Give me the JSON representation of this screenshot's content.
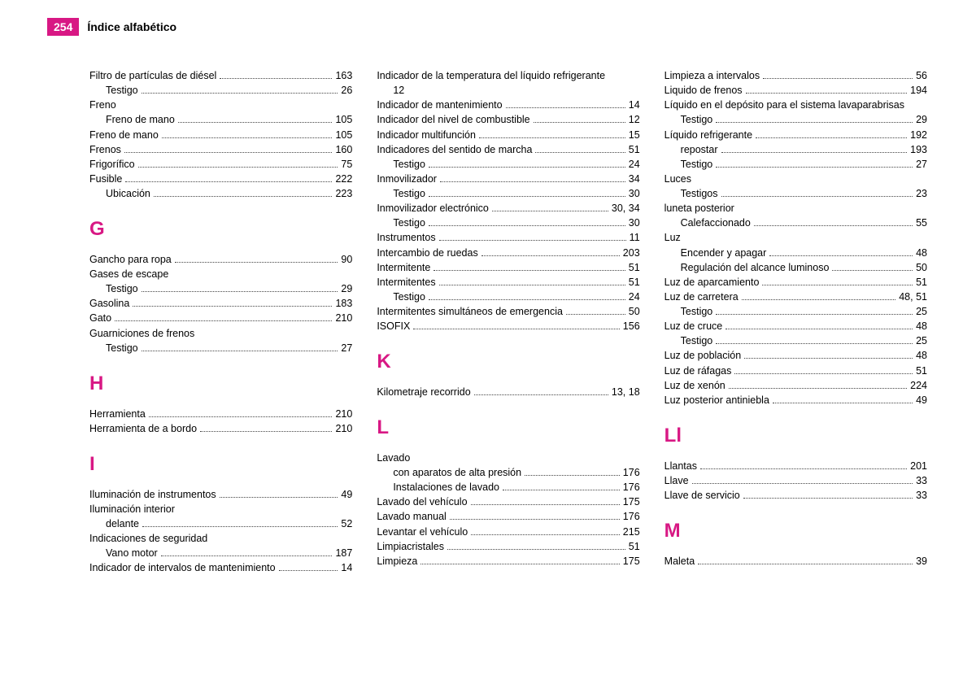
{
  "header": {
    "page_number": "254",
    "title": "Índice alfabético"
  },
  "colors": {
    "accent": "#d81884",
    "text": "#000000",
    "background": "#ffffff"
  },
  "columns": [
    {
      "blocks": [
        {
          "entries": [
            {
              "label": "Filtro de partículas de diésel",
              "page": "163"
            },
            {
              "label": "Testigo",
              "page": "26",
              "sub": true
            },
            {
              "label": "Freno",
              "page": ""
            },
            {
              "label": "Freno de mano",
              "page": "105",
              "sub": true
            },
            {
              "label": "Freno de mano",
              "page": "105"
            },
            {
              "label": "Frenos",
              "page": "160"
            },
            {
              "label": "Frigorífico",
              "page": "75"
            },
            {
              "label": "Fusible",
              "page": "222"
            },
            {
              "label": "Ubicación",
              "page": "223",
              "sub": true
            }
          ]
        },
        {
          "letter": "G",
          "entries": [
            {
              "label": "Gancho para ropa",
              "page": "90"
            },
            {
              "label": "Gases de escape",
              "page": ""
            },
            {
              "label": "Testigo",
              "page": "29",
              "sub": true
            },
            {
              "label": "Gasolina",
              "page": "183"
            },
            {
              "label": "Gato",
              "page": "210"
            },
            {
              "label": "Guarniciones de frenos",
              "page": ""
            },
            {
              "label": "Testigo",
              "page": "27",
              "sub": true
            }
          ]
        },
        {
          "letter": "H",
          "entries": [
            {
              "label": "Herramienta",
              "page": "210"
            },
            {
              "label": "Herramienta de a bordo",
              "page": "210"
            }
          ]
        },
        {
          "letter": "I",
          "entries": [
            {
              "label": "Iluminación de instrumentos",
              "page": "49"
            },
            {
              "label": "Iluminación interior",
              "page": ""
            },
            {
              "label": "delante",
              "page": "52",
              "sub": true
            },
            {
              "label": "Indicaciones de seguridad",
              "page": ""
            },
            {
              "label": "Vano motor",
              "page": "187",
              "sub": true
            },
            {
              "label": "Indicador de intervalos de mantenimiento",
              "page": "14"
            }
          ]
        }
      ]
    },
    {
      "blocks": [
        {
          "entries": [
            {
              "label": "Indicador de la temperatura del líquido refrigerante",
              "page": "",
              "wrap": true
            },
            {
              "label": "12",
              "page": "",
              "sub": true,
              "literal": true
            },
            {
              "label": "Indicador de mantenimiento",
              "page": "14"
            },
            {
              "label": "Indicador del nivel de combustible",
              "page": "12"
            },
            {
              "label": "Indicador multifunción",
              "page": "15"
            },
            {
              "label": "Indicadores del sentido de marcha",
              "page": "51"
            },
            {
              "label": "Testigo",
              "page": "24",
              "sub": true
            },
            {
              "label": "Inmovilizador",
              "page": "34"
            },
            {
              "label": "Testigo",
              "page": "30",
              "sub": true
            },
            {
              "label": "Inmovilizador electrónico",
              "page": "30, 34"
            },
            {
              "label": "Testigo",
              "page": "30",
              "sub": true
            },
            {
              "label": "Instrumentos",
              "page": "11"
            },
            {
              "label": "Intercambio de ruedas",
              "page": "203"
            },
            {
              "label": "Intermitente",
              "page": "51"
            },
            {
              "label": "Intermitentes",
              "page": "51"
            },
            {
              "label": "Testigo",
              "page": "24",
              "sub": true
            },
            {
              "label": "Intermitentes simultáneos de emergencia",
              "page": "50"
            },
            {
              "label": "ISOFIX",
              "page": "156"
            }
          ]
        },
        {
          "letter": "K",
          "entries": [
            {
              "label": "Kilometraje recorrido",
              "page": "13, 18"
            }
          ]
        },
        {
          "letter": "L",
          "entries": [
            {
              "label": "Lavado",
              "page": ""
            },
            {
              "label": "con aparatos de alta presión",
              "page": "176",
              "sub": true
            },
            {
              "label": "Instalaciones de lavado",
              "page": "176",
              "sub": true
            },
            {
              "label": "Lavado del vehículo",
              "page": "175"
            },
            {
              "label": "Lavado manual",
              "page": "176"
            },
            {
              "label": "Levantar el vehículo",
              "page": "215"
            },
            {
              "label": "Limpiacristales",
              "page": "51"
            },
            {
              "label": "Limpieza",
              "page": "175"
            }
          ]
        }
      ]
    },
    {
      "blocks": [
        {
          "entries": [
            {
              "label": "Limpieza a intervalos",
              "page": "56"
            },
            {
              "label": "Liquido de frenos",
              "page": "194"
            },
            {
              "label": "Líquido en el depósito para el sistema lavaparabrisas",
              "page": "",
              "wrap": true
            },
            {
              "label": "Testigo",
              "page": "29",
              "sub": true
            },
            {
              "label": "Líquido refrigerante",
              "page": "192"
            },
            {
              "label": "repostar",
              "page": "193",
              "sub": true
            },
            {
              "label": "Testigo",
              "page": "27",
              "sub": true
            },
            {
              "label": "Luces",
              "page": ""
            },
            {
              "label": "Testigos",
              "page": "23",
              "sub": true
            },
            {
              "label": "luneta posterior",
              "page": ""
            },
            {
              "label": "Calefaccionado",
              "page": "55",
              "sub": true
            },
            {
              "label": "Luz",
              "page": ""
            },
            {
              "label": "Encender y apagar",
              "page": "48",
              "sub": true
            },
            {
              "label": "Regulación del alcance luminoso",
              "page": "50",
              "sub": true
            },
            {
              "label": "Luz de aparcamiento",
              "page": "51"
            },
            {
              "label": "Luz de carretera",
              "page": "48, 51"
            },
            {
              "label": "Testigo",
              "page": "25",
              "sub": true
            },
            {
              "label": "Luz de cruce",
              "page": "48"
            },
            {
              "label": "Testigo",
              "page": "25",
              "sub": true
            },
            {
              "label": "Luz de población",
              "page": "48"
            },
            {
              "label": "Luz de ráfagas",
              "page": "51"
            },
            {
              "label": "Luz de xenón",
              "page": "224"
            },
            {
              "label": "Luz posterior antiniebla",
              "page": "49"
            }
          ]
        },
        {
          "letter": "Ll",
          "entries": [
            {
              "label": "Llantas",
              "page": "201"
            },
            {
              "label": "Llave",
              "page": "33"
            },
            {
              "label": "Llave de servicio",
              "page": "33"
            }
          ]
        },
        {
          "letter": "M",
          "entries": [
            {
              "label": "Maleta",
              "page": "39"
            }
          ]
        }
      ]
    }
  ]
}
